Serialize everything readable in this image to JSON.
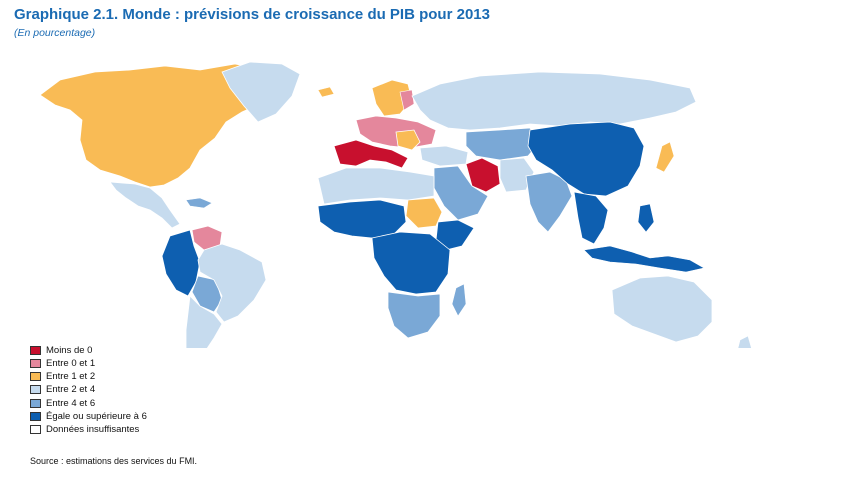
{
  "title": "Graphique 2.1.  Monde : prévisions de croissance du PIB pour 2013",
  "subtitle": "(En pourcentage)",
  "legend": [
    {
      "label": "Moins de 0",
      "color": "#c8102e"
    },
    {
      "label": "Entre 0 et 1",
      "color": "#e4879c"
    },
    {
      "label": "Entre 1 et 2",
      "color": "#f9bb55"
    },
    {
      "label": "Entre 2 et 4",
      "color": "#c6dbee"
    },
    {
      "label": "Entre 4 et 6",
      "color": "#7aa8d6"
    },
    {
      "label": "Égale ou supérieure à 6",
      "color": "#0e5fb0"
    },
    {
      "label": "Données insuffisantes",
      "color": "#ffffff"
    }
  ],
  "source": "Source : estimations des services du FMI.",
  "colors": {
    "title": "#1b6bb3",
    "border": "#ffffff"
  }
}
